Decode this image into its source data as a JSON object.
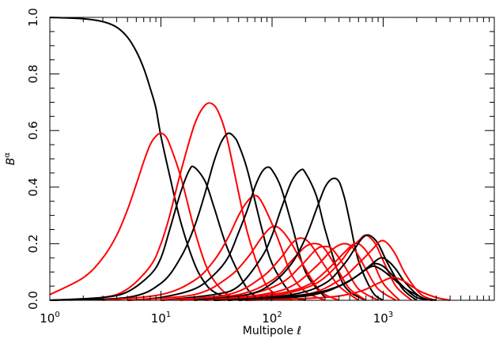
{
  "chart_data": {
    "type": "line",
    "title": "",
    "xlabel": "Multipole ℓ",
    "ylabel_base": "B",
    "ylabel_sup": "α",
    "x_scale": "log",
    "xlim": [
      1,
      10000
    ],
    "ylim": [
      0,
      1
    ],
    "x_ticks": [
      {
        "value": 1,
        "base": "10",
        "exp": "0"
      },
      {
        "value": 10,
        "base": "10",
        "exp": "1"
      },
      {
        "value": 100,
        "base": "10",
        "exp": "2"
      },
      {
        "value": 1000,
        "base": "10",
        "exp": "3"
      }
    ],
    "y_ticks": [
      {
        "value": 0.0,
        "label": "0.0"
      },
      {
        "value": 0.2,
        "label": "0.2"
      },
      {
        "value": 0.4,
        "label": "0.4"
      },
      {
        "value": 0.6,
        "label": "0.6"
      },
      {
        "value": 0.8,
        "label": "0.8"
      },
      {
        "value": 1.0,
        "label": "1.0"
      }
    ],
    "grid": false,
    "legend": "none",
    "series": [
      {
        "color": "#000000",
        "x": [
          1,
          2,
          3,
          4,
          5,
          6,
          7,
          8,
          9,
          10,
          12,
          15,
          20,
          25,
          30,
          40,
          60
        ],
        "y": [
          1.0,
          0.995,
          0.985,
          0.965,
          0.93,
          0.88,
          0.82,
          0.75,
          0.68,
          0.58,
          0.44,
          0.28,
          0.13,
          0.06,
          0.03,
          0.01,
          0.0
        ]
      },
      {
        "color": "#ff0000",
        "x": [
          1,
          2,
          3,
          4,
          5,
          6,
          7,
          8,
          9,
          10,
          11,
          12,
          15,
          20,
          25,
          30,
          40,
          60
        ],
        "y": [
          0.02,
          0.08,
          0.15,
          0.23,
          0.32,
          0.41,
          0.49,
          0.55,
          0.58,
          0.59,
          0.58,
          0.55,
          0.44,
          0.25,
          0.13,
          0.07,
          0.02,
          0.0
        ]
      },
      {
        "color": "#ff0000",
        "x": [
          1,
          3,
          5,
          8,
          10,
          12,
          15,
          20,
          25,
          30,
          35,
          40,
          50,
          60,
          80,
          100,
          150
        ],
        "y": [
          0.0,
          0.01,
          0.04,
          0.12,
          0.2,
          0.3,
          0.45,
          0.62,
          0.69,
          0.69,
          0.64,
          0.56,
          0.38,
          0.24,
          0.09,
          0.03,
          0.0
        ]
      },
      {
        "color": "#000000",
        "x": [
          1,
          3,
          5,
          8,
          10,
          12,
          15,
          18,
          20,
          25,
          30,
          40,
          60,
          80,
          100
        ],
        "y": [
          0.0,
          0.01,
          0.03,
          0.09,
          0.15,
          0.25,
          0.38,
          0.46,
          0.47,
          0.42,
          0.33,
          0.18,
          0.04,
          0.01,
          0.0
        ]
      },
      {
        "color": "#000000",
        "x": [
          1,
          5,
          10,
          15,
          20,
          25,
          30,
          35,
          40,
          45,
          50,
          60,
          80,
          100,
          150,
          200
        ],
        "y": [
          0.0,
          0.01,
          0.06,
          0.15,
          0.26,
          0.38,
          0.49,
          0.56,
          0.59,
          0.58,
          0.55,
          0.46,
          0.26,
          0.13,
          0.02,
          0.0
        ]
      },
      {
        "color": "#ff0000",
        "x": [
          3,
          10,
          20,
          30,
          40,
          50,
          60,
          70,
          80,
          100,
          120,
          150,
          200,
          300
        ],
        "y": [
          0.0,
          0.02,
          0.07,
          0.14,
          0.22,
          0.3,
          0.35,
          0.37,
          0.35,
          0.27,
          0.19,
          0.09,
          0.03,
          0.0
        ]
      },
      {
        "color": "#000000",
        "x": [
          5,
          10,
          20,
          30,
          40,
          50,
          60,
          70,
          80,
          90,
          100,
          120,
          150,
          200,
          300
        ],
        "y": [
          0.0,
          0.01,
          0.04,
          0.09,
          0.15,
          0.24,
          0.32,
          0.4,
          0.45,
          0.47,
          0.46,
          0.4,
          0.27,
          0.1,
          0.01
        ]
      },
      {
        "color": "#ff0000",
        "x": [
          5,
          20,
          40,
          60,
          80,
          100,
          120,
          150,
          200,
          250,
          300,
          400
        ],
        "y": [
          0.0,
          0.02,
          0.08,
          0.15,
          0.22,
          0.26,
          0.25,
          0.2,
          0.11,
          0.05,
          0.02,
          0.0
        ]
      },
      {
        "color": "#000000",
        "x": [
          10,
          30,
          50,
          80,
          100,
          120,
          150,
          180,
          200,
          250,
          300,
          400,
          500,
          700
        ],
        "y": [
          0.0,
          0.02,
          0.05,
          0.15,
          0.23,
          0.32,
          0.42,
          0.46,
          0.45,
          0.37,
          0.25,
          0.09,
          0.03,
          0.0
        ]
      },
      {
        "color": "#ff0000",
        "x": [
          10,
          40,
          80,
          120,
          150,
          180,
          220,
          300,
          400,
          600
        ],
        "y": [
          0.0,
          0.02,
          0.08,
          0.15,
          0.2,
          0.22,
          0.2,
          0.12,
          0.05,
          0.0
        ]
      },
      {
        "color": "#ff0000",
        "x": [
          15,
          50,
          100,
          150,
          200,
          250,
          300,
          400,
          500,
          700
        ],
        "y": [
          0.0,
          0.02,
          0.07,
          0.14,
          0.19,
          0.2,
          0.18,
          0.1,
          0.04,
          0.0
        ]
      },
      {
        "color": "#ff0000",
        "x": [
          20,
          60,
          120,
          180,
          250,
          300,
          350,
          450,
          600,
          900
        ],
        "y": [
          0.0,
          0.02,
          0.06,
          0.12,
          0.18,
          0.19,
          0.18,
          0.12,
          0.04,
          0.0
        ]
      },
      {
        "color": "#000000",
        "x": [
          20,
          60,
          100,
          150,
          200,
          250,
          300,
          350,
          400,
          450,
          500,
          600,
          800,
          1000
        ],
        "y": [
          0.0,
          0.02,
          0.06,
          0.13,
          0.22,
          0.32,
          0.4,
          0.43,
          0.42,
          0.36,
          0.28,
          0.14,
          0.03,
          0.0
        ]
      },
      {
        "color": "#ff0000",
        "x": [
          25,
          80,
          150,
          250,
          350,
          450,
          550,
          700,
          900,
          1300
        ],
        "y": [
          0.0,
          0.02,
          0.05,
          0.12,
          0.18,
          0.2,
          0.18,
          0.11,
          0.04,
          0.0
        ]
      },
      {
        "color": "#ff0000",
        "x": [
          30,
          100,
          200,
          300,
          450,
          550,
          650,
          800,
          1000,
          1400
        ],
        "y": [
          0.0,
          0.02,
          0.05,
          0.1,
          0.17,
          0.2,
          0.19,
          0.14,
          0.06,
          0.0
        ]
      },
      {
        "color": "#ff0000",
        "x": [
          40,
          120,
          250,
          400,
          500,
          600,
          700,
          850,
          1000,
          1300,
          1800
        ],
        "y": [
          0.0,
          0.02,
          0.06,
          0.13,
          0.18,
          0.21,
          0.23,
          0.2,
          0.14,
          0.05,
          0.0
        ]
      },
      {
        "color": "#000000",
        "x": [
          40,
          150,
          300,
          450,
          550,
          650,
          750,
          900,
          1100,
          1500,
          2000
        ],
        "y": [
          0.0,
          0.02,
          0.06,
          0.13,
          0.18,
          0.22,
          0.23,
          0.2,
          0.13,
          0.04,
          0.0
        ]
      },
      {
        "color": "#ff0000",
        "x": [
          50,
          200,
          400,
          600,
          800,
          950,
          1100,
          1300,
          1600,
          2200,
          3000
        ],
        "y": [
          0.0,
          0.02,
          0.07,
          0.13,
          0.18,
          0.21,
          0.2,
          0.16,
          0.09,
          0.02,
          0.0
        ]
      },
      {
        "color": "#000000",
        "x": [
          50,
          200,
          400,
          600,
          800,
          950,
          1100,
          1300,
          1600,
          2200,
          3000
        ],
        "y": [
          0.0,
          0.02,
          0.05,
          0.09,
          0.13,
          0.15,
          0.14,
          0.11,
          0.06,
          0.01,
          0.0
        ]
      },
      {
        "color": "#000000",
        "x": [
          40,
          200,
          400,
          600,
          750,
          850,
          1000,
          1200,
          1500,
          2000,
          2800
        ],
        "y": [
          0.0,
          0.02,
          0.05,
          0.09,
          0.12,
          0.13,
          0.12,
          0.09,
          0.05,
          0.01,
          0.0
        ]
      },
      {
        "color": "#000000",
        "x": [
          30,
          150,
          300,
          500,
          650,
          800,
          950,
          1200,
          1600,
          2500
        ],
        "y": [
          0.0,
          0.01,
          0.03,
          0.07,
          0.1,
          0.12,
          0.11,
          0.08,
          0.04,
          0.0
        ]
      },
      {
        "color": "#ff0000",
        "x": [
          60,
          300,
          600,
          900,
          1200,
          1500,
          1800,
          2200,
          3000,
          4000
        ],
        "y": [
          0.0,
          0.01,
          0.03,
          0.06,
          0.08,
          0.07,
          0.05,
          0.03,
          0.01,
          0.0
        ]
      }
    ]
  }
}
